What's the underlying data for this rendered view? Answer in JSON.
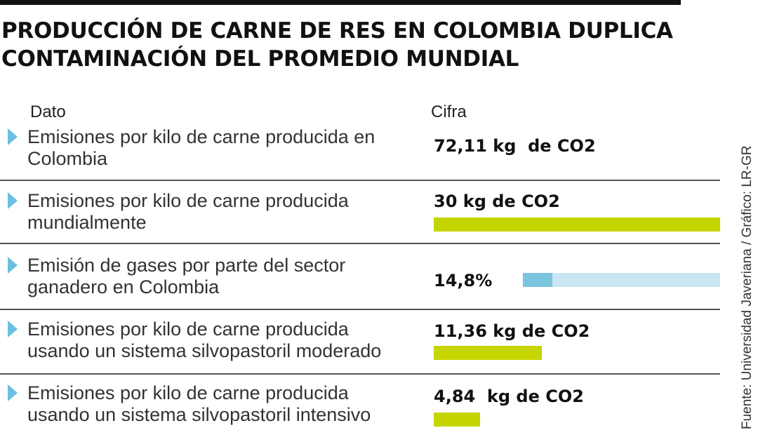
{
  "title_lines": [
    "PRODUCCIÓN DE CARNE DE RES EN COLOMBIA DUPLICA",
    "CONTAMINACIÓN DEL PROMEDIO MUNDIAL"
  ],
  "headers": {
    "dato": "Dato",
    "cifra": "Cifra"
  },
  "source": "Fuente: Universidad Javeriana / Gráfico: LR-GR",
  "colors": {
    "bar": "#c5d500",
    "pct_fill": "#7ac4df",
    "pct_track": "#c9e6f2",
    "marker": "#6bbfdf"
  },
  "chart_data": {
    "type": "bar",
    "rows": [
      {
        "dato": [
          "Emisiones por kilo de carne producida en",
          "Colombia"
        ],
        "cifra": "72,11 kg  de CO2",
        "value": 72.11,
        "unit": "kg de CO2"
      },
      {
        "dato": [
          "Emisiones por kilo de carne producida",
          "mundialmente"
        ],
        "cifra": "30 kg de CO2",
        "value": 30,
        "unit": "kg de CO2"
      },
      {
        "dato": [
          "Emisión de gases por parte del sector",
          "ganadero en Colombia"
        ],
        "cifra": "14,8%",
        "value": 14.8,
        "unit": "%"
      },
      {
        "dato": [
          "Emisiones por kilo de carne producida",
          "usando un sistema silvopastoril moderado"
        ],
        "cifra": "11,36 kg de CO2",
        "value": 11.36,
        "unit": "kg de CO2"
      },
      {
        "dato": [
          "Emisiones por kilo de carne producida",
          "usando un sistema silvopastoril intensivo"
        ],
        "cifra": "4,84  kg de CO2",
        "value": 4.84,
        "unit": "kg de CO2"
      }
    ]
  }
}
